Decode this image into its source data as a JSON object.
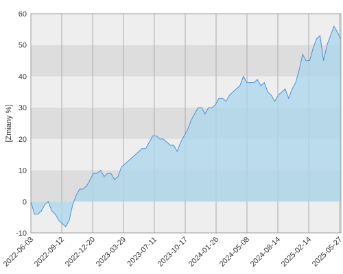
{
  "chart_data": {
    "type": "area",
    "y_label": "[Zmiany %]",
    "ylim": [
      -10,
      60
    ],
    "yticks": [
      -10,
      0,
      10,
      20,
      30,
      40,
      50,
      60
    ],
    "xticks": [
      "2022-06-03",
      "2022-09-12",
      "2022-12-20",
      "2023-03-29",
      "2023-07-11",
      "2023-10-17",
      "2024-01-26",
      "2024-05-08",
      "2024-08-14",
      "2025-02-14",
      "2025-05-27"
    ],
    "color": "#4a90d9",
    "fill": "#a9d6ec",
    "band_colors": [
      "#eeeeee",
      "#dddddd"
    ],
    "grid": true,
    "values": [
      0,
      -4,
      -4,
      -3,
      -1,
      0,
      -3,
      -4,
      -6,
      -7,
      -8,
      -6,
      -1,
      2,
      4,
      4,
      5,
      7,
      9,
      9,
      10,
      8,
      9,
      9,
      7,
      8,
      11,
      12,
      13,
      14,
      15,
      16,
      17,
      17,
      19,
      21,
      21,
      20,
      20,
      19,
      18,
      18,
      16,
      19,
      21,
      23,
      26,
      28,
      30,
      30,
      28,
      30,
      30,
      31,
      33,
      33,
      32,
      34,
      35,
      36,
      37,
      40,
      38,
      38,
      38,
      39,
      37,
      38,
      35,
      34,
      32,
      34,
      35,
      36,
      33,
      36,
      38,
      42,
      47,
      45,
      45,
      49,
      52,
      53,
      45,
      50,
      53,
      56,
      54,
      52
    ]
  }
}
